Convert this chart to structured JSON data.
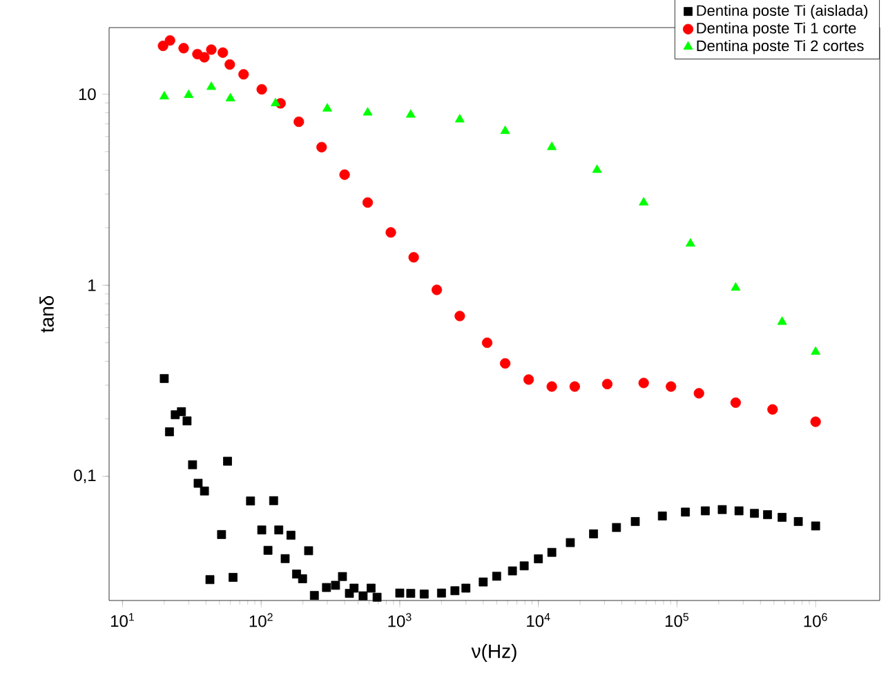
{
  "chart_data": {
    "type": "scatter",
    "xlabel": "ν(Hz)",
    "ylabel": "tanδ",
    "log": "xy",
    "legend": "top right",
    "grid": false,
    "xlim": [
      8,
      2900000
    ],
    "ylim": [
      0.0224,
      22.3
    ],
    "xticks": [
      {
        "value": 10,
        "label": "10$^{1}$"
      },
      {
        "value": 100,
        "label": "10$^{2}$"
      },
      {
        "value": 1000,
        "label": "10$^{3}$"
      },
      {
        "value": 10000,
        "label": "10$^{4}$"
      },
      {
        "value": 100000,
        "label": "10$^{5}$"
      },
      {
        "value": 1000000,
        "label": "10$^{6}$"
      }
    ],
    "yticks": [
      {
        "value": 0.1,
        "label": "0,1"
      },
      1,
      10
    ],
    "series": [
      {
        "name": "Dentina poste Ti (aislada)",
        "color": "#000000",
        "marker": "square",
        "x": [
          20,
          21.8,
          24,
          26.6,
          29.2,
          32,
          35.1,
          39,
          42.7,
          51.8,
          57.2,
          62.7,
          83.8,
          101,
          112,
          123,
          134,
          149,
          164,
          180,
          199,
          220,
          242,
          296,
          344,
          386,
          433,
          468,
          544,
          621,
          686,
          1000,
          1200,
          1500,
          2000,
          2500,
          3000,
          4000,
          5000,
          6500,
          7900,
          10000,
          12500,
          17000,
          25000,
          36600,
          50000,
          78400,
          115000,
          160000,
          212000,
          280000,
          362000,
          450000,
          573000,
          750000,
          1000000
        ],
        "values": [
          0.325,
          0.171,
          0.21,
          0.218,
          0.195,
          0.115,
          0.092,
          0.0838,
          0.0288,
          0.0496,
          0.12,
          0.0296,
          0.0743,
          0.0524,
          0.041,
          0.0746,
          0.0524,
          0.0371,
          0.0492,
          0.0308,
          0.0291,
          0.0408,
          0.0238,
          0.0262,
          0.0269,
          0.0299,
          0.0244,
          0.026,
          0.0237,
          0.026,
          0.0233,
          0.0245,
          0.0244,
          0.0242,
          0.0245,
          0.0252,
          0.026,
          0.028,
          0.03,
          0.032,
          0.034,
          0.037,
          0.04,
          0.045,
          0.05,
          0.054,
          0.058,
          0.062,
          0.065,
          0.066,
          0.067,
          0.066,
          0.064,
          0.063,
          0.061,
          0.058,
          0.055
        ]
      },
      {
        "name": "Dentina poste Ti 1 corte",
        "color": "#ff0000",
        "marker": "circle",
        "x": [
          19.6,
          22,
          27.6,
          34.7,
          38.9,
          43.7,
          52.9,
          59.4,
          74.7,
          101,
          138,
          187,
          273,
          400,
          587,
          862,
          1260,
          1850,
          2710,
          4270,
          5760,
          8510,
          12500,
          18300,
          31400,
          57500,
          90500,
          144000,
          265000,
          489000,
          1000000
        ],
        "values": [
          17.9,
          19.1,
          17.4,
          16.2,
          15.6,
          17.1,
          16.5,
          14.3,
          12.7,
          10.6,
          8.95,
          7.17,
          5.28,
          3.79,
          2.71,
          1.89,
          1.4,
          0.946,
          0.69,
          0.5,
          0.39,
          0.321,
          0.295,
          0.295,
          0.304,
          0.308,
          0.295,
          0.272,
          0.243,
          0.224,
          0.193
        ]
      },
      {
        "name": "Dentina poste Ti 2 cortes",
        "color": "#00ff00",
        "marker": "triangle",
        "x": [
          20,
          30,
          43.7,
          60,
          127,
          300,
          587,
          1200,
          2710,
          5760,
          12500,
          26500,
          57500,
          125000,
          265000,
          573000,
          1000000
        ],
        "values": [
          9.72,
          9.9,
          10.9,
          9.5,
          8.95,
          8.4,
          8.0,
          7.8,
          7.37,
          6.41,
          5.28,
          4.01,
          2.71,
          1.65,
          0.97,
          0.643,
          0.448
        ]
      }
    ]
  }
}
